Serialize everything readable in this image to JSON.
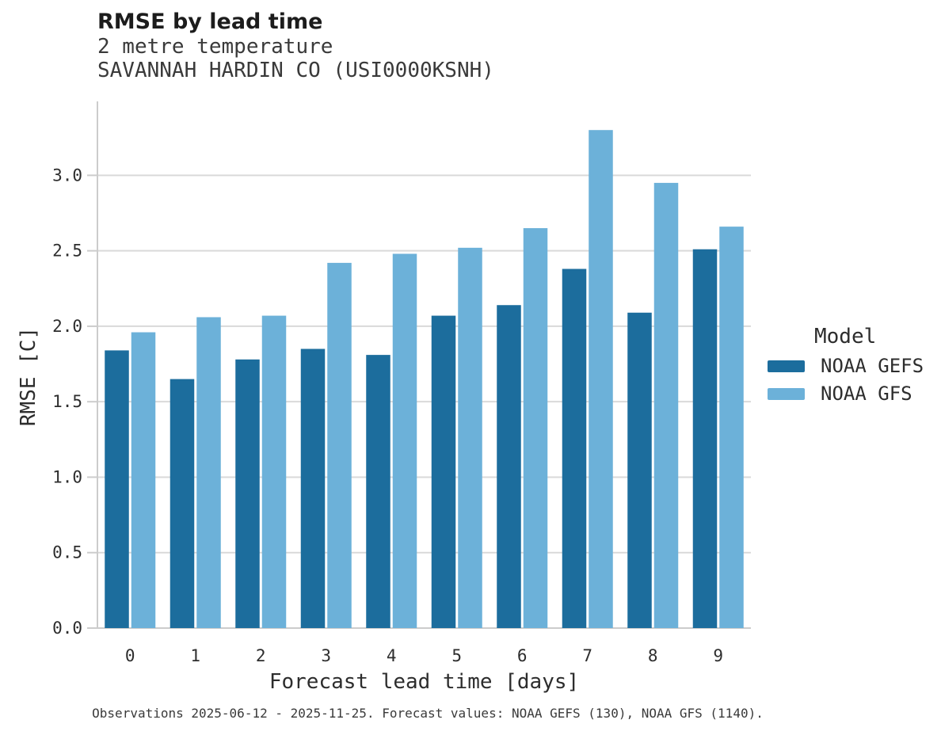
{
  "header": {
    "title": "RMSE by lead time",
    "subtitle_variable": "2 metre temperature",
    "subtitle_station": "SAVANNAH HARDIN CO (USI0000KSNH)"
  },
  "chart_data": {
    "type": "bar",
    "title": "RMSE by lead time",
    "subtitle": [
      "2 metre temperature",
      "SAVANNAH HARDIN CO (USI0000KSNH)"
    ],
    "categories": [
      "0",
      "1",
      "2",
      "3",
      "4",
      "5",
      "6",
      "7",
      "8",
      "9"
    ],
    "series": [
      {
        "name": "NOAA GEFS",
        "color": "#1c6d9d",
        "values": [
          1.84,
          1.65,
          1.78,
          1.85,
          1.81,
          2.07,
          2.14,
          2.38,
          2.09,
          2.51
        ]
      },
      {
        "name": "NOAA GFS",
        "color": "#6cb1d9",
        "values": [
          1.96,
          2.06,
          2.07,
          2.42,
          2.48,
          2.52,
          2.65,
          3.3,
          2.95,
          2.66
        ]
      }
    ],
    "xlabel": "Forecast lead time [days]",
    "ylabel": "RMSE [C]",
    "ylim": [
      0,
      3.49
    ],
    "yticks": [
      0.0,
      0.5,
      1.0,
      1.5,
      2.0,
      2.5,
      3.0
    ],
    "ytick_labels": [
      "0.0",
      "0.5",
      "1.0",
      "1.5",
      "2.0",
      "2.5",
      "3.0"
    ],
    "grid": "horizontal",
    "legend_position": "right",
    "legend_title": "Model"
  },
  "legend": {
    "title": "Model",
    "entries": [
      {
        "label": "NOAA GEFS",
        "color": "#1c6d9d"
      },
      {
        "label": "NOAA GFS",
        "color": "#6cb1d9"
      }
    ]
  },
  "footer": {
    "text": "Observations 2025-06-12 - 2025-11-25. Forecast values: NOAA GEFS (130), NOAA GFS (1140)."
  },
  "colors": {
    "grid": "#d9d9d9",
    "spine": "#cccccc",
    "tick_text": "#2d2d2d",
    "background": "#ffffff"
  }
}
